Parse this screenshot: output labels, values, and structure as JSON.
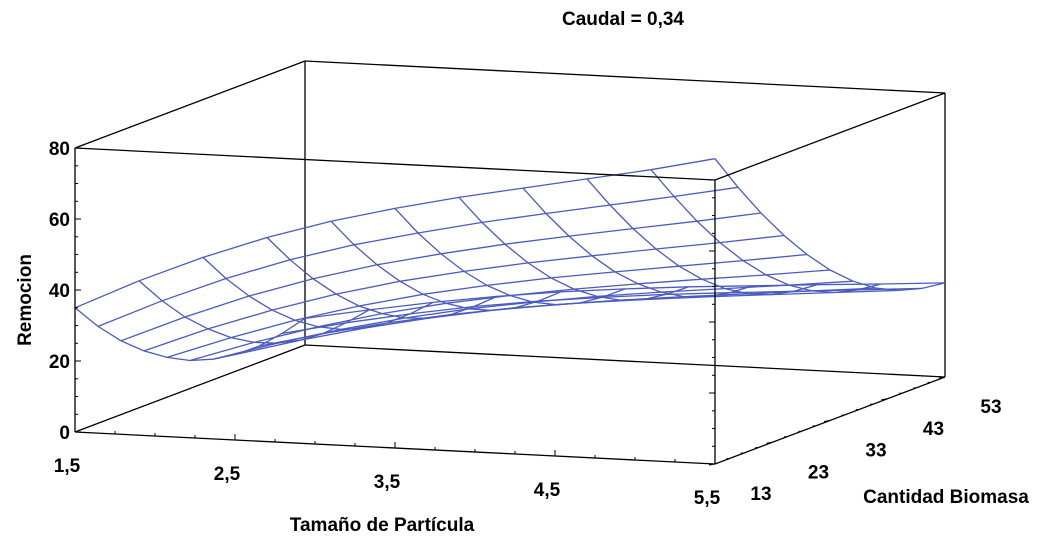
{
  "chart_data": {
    "type": "surface3d",
    "title": "Caudal = 0,34",
    "xlabel": "Tamaño de Partícula",
    "ylabel": "Cantidad Biomasa",
    "zlabel": "Remocion",
    "x_ticks": [
      "1,5",
      "2,5",
      "3,5",
      "4,5",
      "5,5"
    ],
    "y_ticks": [
      "13",
      "23",
      "33",
      "43",
      "53"
    ],
    "z_ticks": [
      "0",
      "20",
      "40",
      "60",
      "80"
    ],
    "xlim": [
      1.5,
      5.5
    ],
    "ylim": [
      13,
      53
    ],
    "zlim": [
      0,
      80
    ],
    "grid_size": [
      11,
      11
    ],
    "x": [
      1.5,
      1.9,
      2.3,
      2.7,
      3.1,
      3.5,
      3.9,
      4.3,
      4.7,
      5.1,
      5.5
    ],
    "y": [
      13,
      17,
      21,
      25,
      29,
      33,
      37,
      41,
      45,
      49,
      53
    ],
    "z": [
      [
        35.0,
        43.5,
        51.0,
        57.5,
        63.0,
        67.5,
        71.5,
        75.0,
        78.5,
        82.0,
        86.0
      ],
      [
        27.3,
        35.4,
        42.6,
        48.8,
        53.9,
        58.1,
        62.0,
        65.4,
        68.7,
        72.0,
        75.5
      ],
      [
        20.8,
        28.4,
        35.2,
        41.0,
        45.8,
        49.8,
        53.4,
        56.6,
        59.6,
        62.6,
        65.8
      ],
      [
        15.5,
        22.6,
        28.8,
        34.2,
        38.7,
        42.4,
        45.7,
        48.6,
        51.4,
        54.1,
        57.0
      ],
      [
        11.2,
        17.7,
        23.5,
        28.4,
        32.6,
        36.0,
        39.0,
        41.6,
        44.1,
        46.6,
        49.2
      ],
      [
        7.9,
        13.9,
        19.2,
        23.8,
        27.6,
        30.7,
        33.4,
        35.8,
        38.0,
        40.1,
        42.4
      ],
      [
        5.8,
        11.2,
        16.0,
        20.1,
        23.6,
        26.4,
        28.9,
        31.0,
        32.9,
        34.8,
        36.8
      ],
      [
        4.7,
        9.6,
        13.9,
        17.6,
        20.7,
        23.2,
        25.4,
        27.3,
        29.0,
        30.7,
        32.4
      ],
      [
        4.6,
        9.0,
        12.9,
        16.2,
        19.0,
        21.2,
        23.1,
        24.8,
        26.3,
        27.8,
        29.3
      ],
      [
        5.7,
        9.6,
        13.0,
        16.0,
        18.4,
        20.4,
        22.1,
        23.5,
        24.8,
        26.1,
        27.4
      ],
      [
        7.5,
        10.8,
        13.8,
        16.4,
        18.6,
        20.3,
        21.8,
        23.0,
        24.2,
        25.3,
        26.5
      ]
    ],
    "colors": {
      "surface": "#4a5bbf",
      "box": "#000000"
    }
  }
}
